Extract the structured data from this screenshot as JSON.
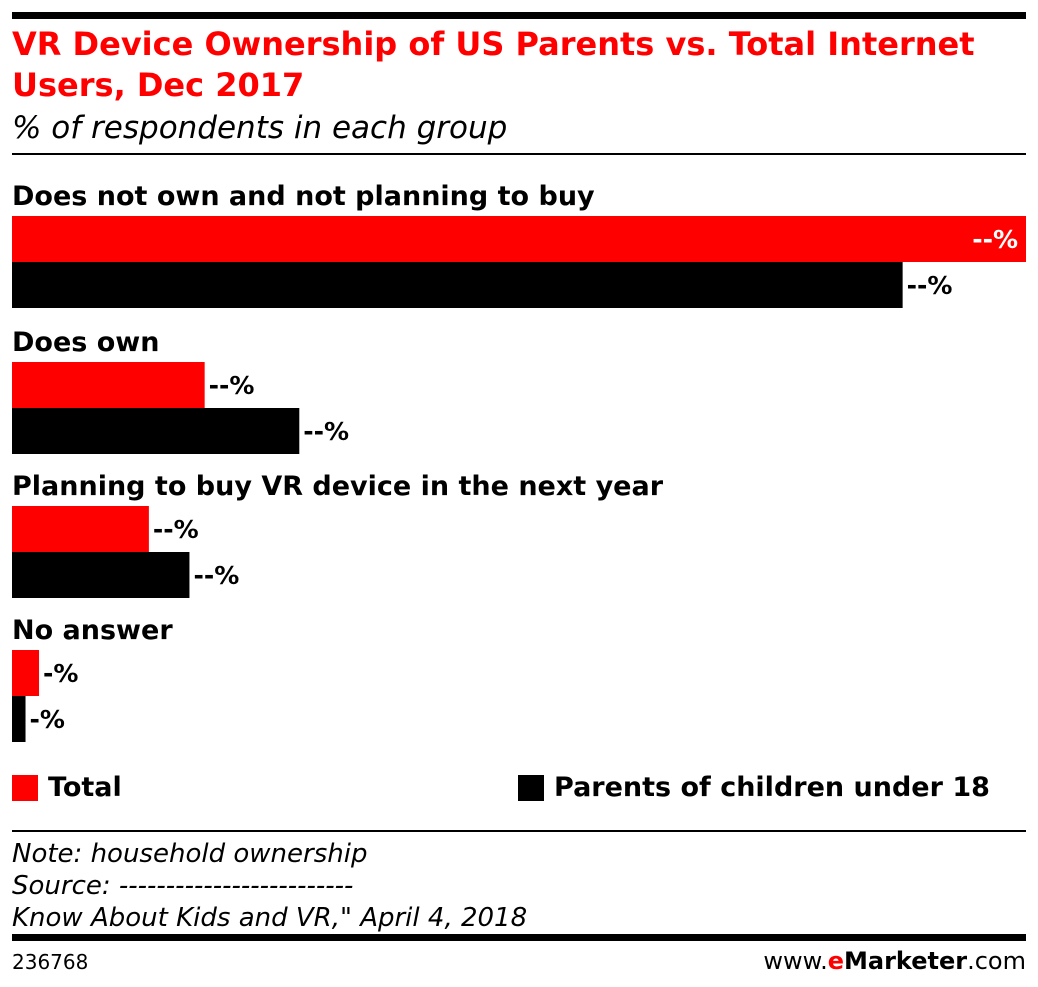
{
  "title": "VR Device Ownership of US Parents vs. Total Internet Users, Dec 2017",
  "subtitle": "% of respondents in each group",
  "chart_data": {
    "type": "bar",
    "orientation": "horizontal",
    "categories": [
      "Does not own and not planning to buy",
      "Does own",
      "Planning to buy VR device in the next year",
      "No answer"
    ],
    "series": [
      {
        "name": "Total",
        "color": "#ff0000",
        "values": [
          60.0,
          11.4,
          8.1,
          1.6
        ],
        "labels": [
          "--%",
          "--%",
          "--%",
          "-%"
        ]
      },
      {
        "name": "Parents of children under 18",
        "color": "#000000",
        "values": [
          52.7,
          17.0,
          10.5,
          0.8
        ],
        "labels": [
          "--%",
          "--%",
          "--%",
          "-%"
        ]
      }
    ],
    "xlim": [
      0,
      60
    ],
    "value_labels_hidden": true,
    "legend": "bottom",
    "grid": false
  },
  "legend": {
    "items": [
      {
        "label": "Total",
        "color": "#ff0000"
      },
      {
        "label": "Parents of children under 18",
        "color": "#000000"
      }
    ]
  },
  "footer": {
    "note": "Note: household ownership",
    "source": "Source: -------------------------",
    "source_cont": "Know About Kids and VR,\" April 4, 2018",
    "chart_id": "236768",
    "brand_prefix": "www.",
    "brand_e": "e",
    "brand_name": "Marketer",
    "brand_suffix": ".com"
  }
}
